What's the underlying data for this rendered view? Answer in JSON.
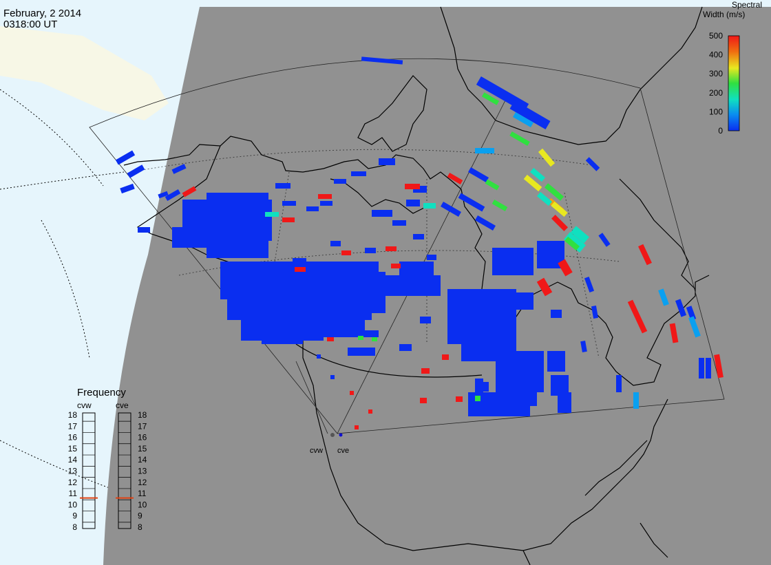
{
  "header": {
    "date": "February, 2 2014",
    "time": "0318:00 UT"
  },
  "colorbar": {
    "title_line1": "Spectral",
    "title_line2": "Width (m/s)",
    "ticks": [
      "500",
      "400",
      "300",
      "200",
      "100",
      "0"
    ]
  },
  "frequency_panel": {
    "title": "Frequency",
    "radars": [
      {
        "name": "cvw",
        "selected_mhz": 10.6
      },
      {
        "name": "cve",
        "selected_mhz": 10.6
      }
    ],
    "scale": [
      "18",
      "17",
      "16",
      "15",
      "14",
      "13",
      "12",
      "11",
      "10",
      "9",
      "8"
    ]
  },
  "sites": [
    {
      "label": "cvw"
    },
    {
      "label": "cve"
    }
  ],
  "colors": {
    "night_region": "#919191",
    "ocean_day": "#e6f5fc",
    "land_day": "#f7f7e6",
    "scale": [
      "#0a2ef0",
      "#0aa0f0",
      "#10e0c0",
      "#30e040",
      "#e8e820",
      "#f0a010",
      "#f01818"
    ]
  }
}
